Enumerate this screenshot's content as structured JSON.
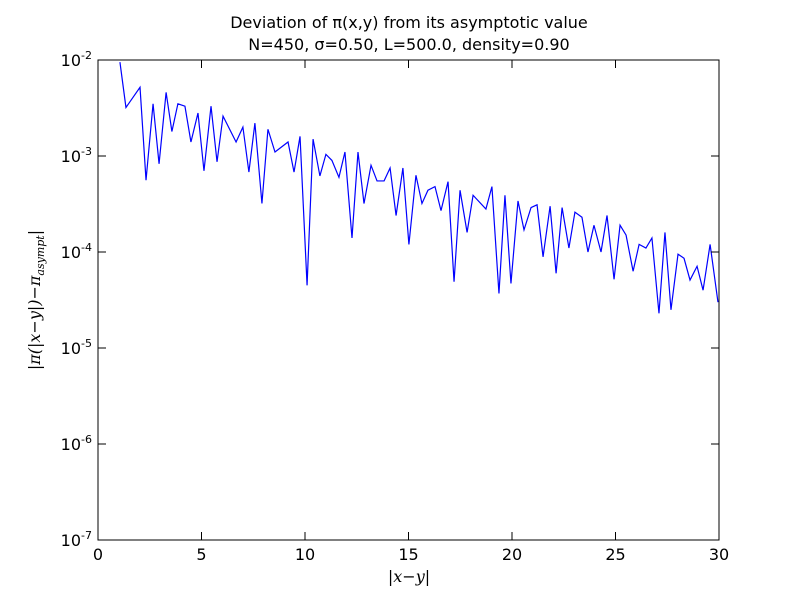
{
  "chart_data": {
    "type": "line",
    "title": "Deviation of π(x,y) from its asymptotic value",
    "subtitle": "N=450, σ=0.50, L=500.0, density=0.90",
    "xlabel": "|x−y|",
    "ylabel": "|π(|x−y|)−π",
    "ylabel_subscript": "asympt",
    "ylabel_end": "|",
    "yscale": "log",
    "xlim": [
      0,
      30
    ],
    "ylim": [
      1e-07,
      0.01
    ],
    "xticks": [
      0,
      5,
      10,
      15,
      20,
      25,
      30
    ],
    "yticks": [
      {
        "value": 1e-07,
        "label": "10",
        "exponent": "-7"
      },
      {
        "value": 1e-06,
        "label": "10",
        "exponent": "-6"
      },
      {
        "value": 1e-05,
        "label": "10",
        "exponent": "-5"
      },
      {
        "value": 0.0001,
        "label": "10",
        "exponent": "-4"
      },
      {
        "value": 0.001,
        "label": "10",
        "exponent": "-3"
      },
      {
        "value": 0.01,
        "label": "10",
        "exponent": "-2"
      }
    ],
    "color": "#0000ff",
    "x": [
      1.06,
      1.35,
      2.03,
      2.32,
      2.66,
      2.95,
      3.29,
      3.57,
      3.86,
      4.2,
      4.49,
      4.83,
      5.12,
      5.46,
      5.75,
      6.04,
      6.67,
      7.0,
      7.29,
      7.58,
      7.92,
      8.21,
      8.55,
      9.18,
      9.47,
      9.76,
      10.1,
      10.39,
      10.72,
      11.01,
      11.3,
      11.64,
      11.93,
      12.27,
      12.56,
      12.85,
      13.19,
      13.48,
      13.82,
      14.11,
      14.4,
      14.73,
      15.02,
      15.36,
      15.65,
      15.94,
      16.28,
      16.57,
      16.91,
      17.2,
      17.49,
      17.83,
      18.12,
      18.74,
      19.03,
      19.37,
      19.66,
      19.95,
      20.29,
      20.58,
      20.92,
      21.21,
      21.5,
      21.84,
      22.13,
      22.42,
      22.75,
      23.04,
      23.38,
      23.67,
      23.96,
      24.3,
      24.59,
      24.93,
      25.22,
      25.51,
      25.85,
      26.14,
      26.47,
      26.76,
      27.1,
      27.39,
      27.68,
      28.02,
      28.31,
      28.6,
      28.94,
      29.23,
      29.57,
      29.95
    ],
    "values": [
      0.0095,
      0.0032,
      0.0052,
      0.00056,
      0.0035,
      0.00083,
      0.0046,
      0.0018,
      0.0035,
      0.0033,
      0.0014,
      0.0028,
      0.0007,
      0.0033,
      0.00087,
      0.0026,
      0.0014,
      0.002,
      0.00068,
      0.0022,
      0.00032,
      0.0019,
      0.0011,
      0.0014,
      0.00068,
      0.0016,
      4.5e-05,
      0.0015,
      0.00062,
      0.00104,
      0.0009,
      0.0006,
      0.0011,
      0.00014,
      0.0011,
      0.00032,
      0.0008,
      0.00055,
      0.00055,
      0.00075,
      0.00024,
      0.00075,
      0.00012,
      0.00063,
      0.00032,
      0.00044,
      0.00048,
      0.00027,
      0.00054,
      4.9e-05,
      0.00044,
      0.00016,
      0.00039,
      0.00028,
      0.00048,
      3.7e-05,
      0.00039,
      4.7e-05,
      0.00034,
      0.00017,
      0.00029,
      0.00031,
      8.9e-05,
      0.0003,
      6e-05,
      0.00029,
      0.00011,
      0.00026,
      0.00023,
      0.0001,
      0.00019,
      0.0001,
      0.00024,
      5.2e-05,
      0.00019,
      0.00015,
      6.3e-05,
      0.00012,
      0.00011,
      0.00014,
      2.3e-05,
      0.00016,
      2.5e-05,
      9.5e-05,
      8.6e-05,
      5.1e-05,
      7.1e-05,
      4e-05,
      0.00012,
      3e-05
    ]
  }
}
